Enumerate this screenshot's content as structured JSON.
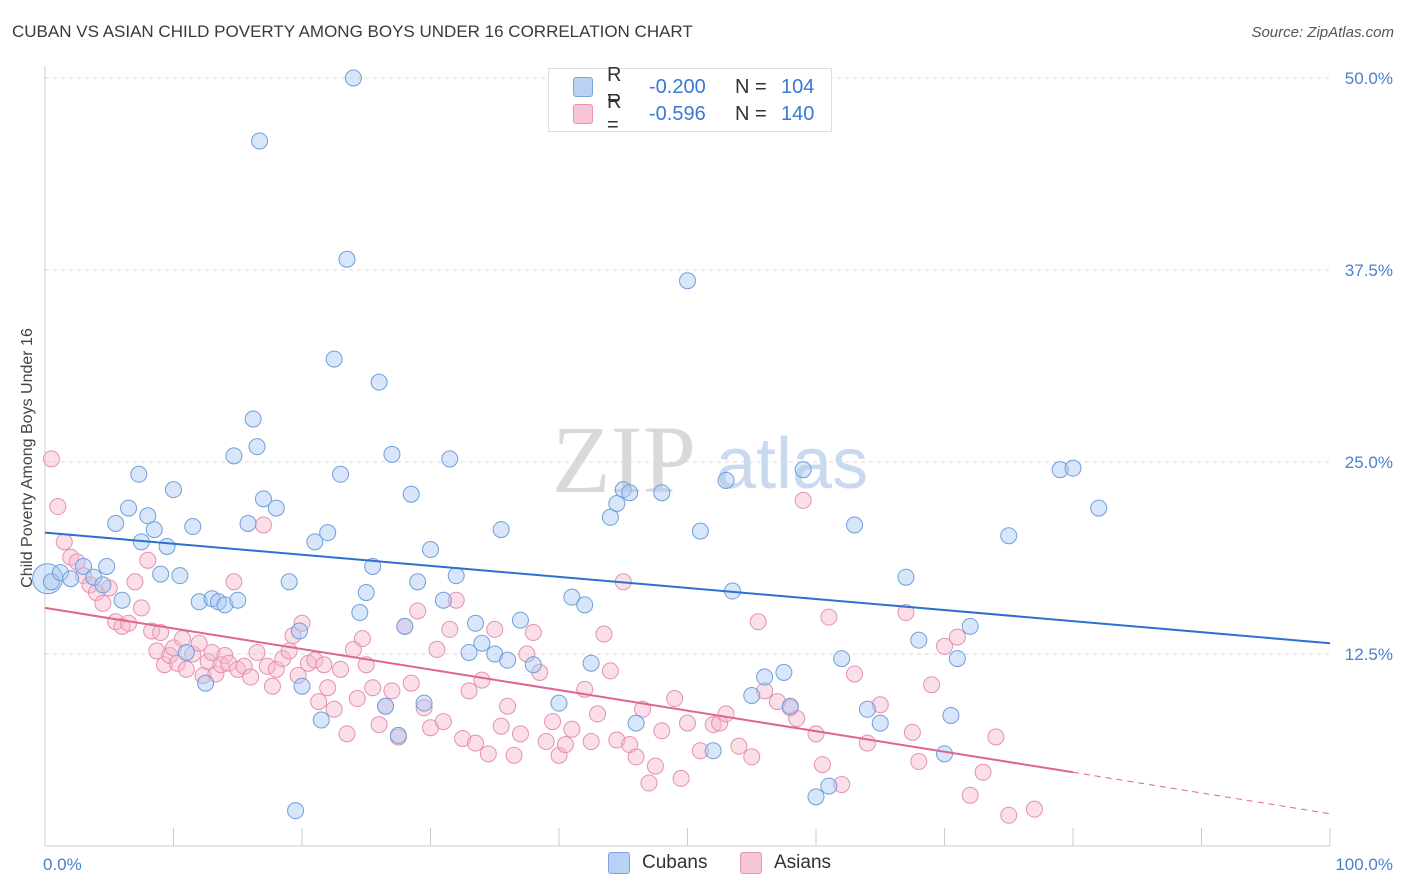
{
  "header": {
    "title": "CUBAN VS ASIAN CHILD POVERTY AMONG BOYS UNDER 16 CORRELATION CHART",
    "source": "Source: ZipAtlas.com"
  },
  "watermark": {
    "zip": "ZIP",
    "atlas": "atlas"
  },
  "legend": {
    "rows": [
      {
        "r_label": "R =",
        "r_value": "-0.200",
        "n_label": "N =",
        "n_value": "104"
      },
      {
        "r_label": "R =",
        "r_value": "-0.596",
        "n_label": "N =",
        "n_value": "140"
      }
    ]
  },
  "bottom_legend": {
    "cubans": "Cubans",
    "asians": "Asians"
  },
  "colors": {
    "cubans_fill": "#a9c8f2",
    "cubans_stroke": "#6f9fdb",
    "cubans_line": "#2d6fcf",
    "asians_fill": "#f6b7cc",
    "asians_stroke": "#e591ae",
    "asians_line": "#e0648f",
    "grid": "#d9d9d9",
    "axis": "#cccccc",
    "tick_text": "#4a7fd0"
  },
  "chart_data": {
    "type": "scatter",
    "title": "CUBAN VS ASIAN CHILD POVERTY AMONG BOYS UNDER 16 CORRELATION CHART",
    "xlabel": "",
    "ylabel": "Child Poverty Among Boys Under 16",
    "xlim": [
      0,
      100
    ],
    "ylim": [
      0,
      50
    ],
    "x_tick_labels": [
      "0.0%",
      "100.0%"
    ],
    "y_ticks": [
      12.5,
      25.0,
      37.5,
      50.0
    ],
    "y_tick_labels": [
      "12.5%",
      "25.0%",
      "37.5%",
      "50.0%"
    ],
    "grid": true,
    "legend_position": "top-center",
    "series": [
      {
        "name": "Cubans",
        "r": -0.2,
        "n": 104,
        "trend": {
          "x": [
            0,
            100
          ],
          "y": [
            20.4,
            13.2
          ],
          "dashed_from": 100
        },
        "points": [
          [
            0.5,
            17.2
          ],
          [
            1.2,
            17.8
          ],
          [
            2,
            17.4
          ],
          [
            3,
            18.2
          ],
          [
            3.8,
            17.5
          ],
          [
            4.5,
            17.0
          ],
          [
            4.8,
            18.2
          ],
          [
            5.5,
            21.0
          ],
          [
            6,
            16.0
          ],
          [
            6.5,
            22.0
          ],
          [
            7.3,
            24.2
          ],
          [
            7.5,
            19.8
          ],
          [
            8,
            21.5
          ],
          [
            8.5,
            20.6
          ],
          [
            9,
            17.7
          ],
          [
            9.5,
            19.5
          ],
          [
            10,
            23.2
          ],
          [
            10.5,
            17.6
          ],
          [
            11,
            12.6
          ],
          [
            11.5,
            20.8
          ],
          [
            12,
            15.9
          ],
          [
            12.5,
            10.6
          ],
          [
            13,
            16.1
          ],
          [
            13.5,
            15.9
          ],
          [
            14,
            15.7
          ],
          [
            14.7,
            25.4
          ],
          [
            15,
            16.0
          ],
          [
            15.8,
            21.0
          ],
          [
            16.2,
            27.8
          ],
          [
            16.5,
            26.0
          ],
          [
            16.7,
            45.9
          ],
          [
            17,
            22.6
          ],
          [
            18,
            22.0
          ],
          [
            19,
            17.2
          ],
          [
            19.5,
            2.3
          ],
          [
            19.8,
            14.0
          ],
          [
            20,
            10.4
          ],
          [
            21,
            19.8
          ],
          [
            21.5,
            8.2
          ],
          [
            22,
            20.4
          ],
          [
            22.5,
            31.7
          ],
          [
            23,
            24.2
          ],
          [
            23.5,
            38.2
          ],
          [
            24,
            50.0
          ],
          [
            24.5,
            15.2
          ],
          [
            25,
            16.5
          ],
          [
            25.5,
            18.2
          ],
          [
            26,
            30.2
          ],
          [
            26.5,
            9.1
          ],
          [
            27,
            25.5
          ],
          [
            27.5,
            7.2
          ],
          [
            28,
            14.3
          ],
          [
            28.5,
            22.9
          ],
          [
            29,
            17.2
          ],
          [
            29.5,
            9.3
          ],
          [
            30,
            19.3
          ],
          [
            31,
            16.0
          ],
          [
            31.5,
            25.2
          ],
          [
            32,
            17.6
          ],
          [
            33,
            12.6
          ],
          [
            33.5,
            14.5
          ],
          [
            34,
            13.2
          ],
          [
            35,
            12.5
          ],
          [
            35.5,
            20.6
          ],
          [
            36,
            12.1
          ],
          [
            37,
            14.7
          ],
          [
            38,
            11.8
          ],
          [
            40,
            9.3
          ],
          [
            41,
            16.2
          ],
          [
            42,
            15.7
          ],
          [
            42.5,
            11.9
          ],
          [
            44,
            21.4
          ],
          [
            44.5,
            22.3
          ],
          [
            45,
            23.2
          ],
          [
            45.5,
            23.0
          ],
          [
            46,
            8.0
          ],
          [
            48,
            23.0
          ],
          [
            50,
            36.8
          ],
          [
            51,
            20.5
          ],
          [
            52,
            6.2
          ],
          [
            53,
            23.8
          ],
          [
            53.5,
            16.6
          ],
          [
            55,
            9.8
          ],
          [
            56,
            11.0
          ],
          [
            57.5,
            11.3
          ],
          [
            58,
            9.1
          ],
          [
            59,
            24.5
          ],
          [
            60,
            3.2
          ],
          [
            61,
            3.9
          ],
          [
            62,
            12.2
          ],
          [
            63,
            20.9
          ],
          [
            64,
            8.9
          ],
          [
            65,
            8.0
          ],
          [
            67,
            17.5
          ],
          [
            68,
            13.4
          ],
          [
            70,
            6.0
          ],
          [
            70.5,
            8.5
          ],
          [
            71,
            12.2
          ],
          [
            72,
            14.3
          ],
          [
            75,
            20.2
          ],
          [
            79,
            24.5
          ],
          [
            80,
            24.6
          ],
          [
            82,
            22.0
          ]
        ]
      },
      {
        "name": "Asians",
        "r": -0.596,
        "n": 140,
        "trend": {
          "x": [
            0,
            80
          ],
          "y": [
            15.5,
            4.8
          ],
          "dashed_x": [
            80,
            100
          ],
          "dashed_y": [
            4.8,
            2.1
          ]
        },
        "points": [
          [
            0.5,
            25.2
          ],
          [
            1,
            22.1
          ],
          [
            1.5,
            19.8
          ],
          [
            2,
            18.8
          ],
          [
            2.5,
            18.5
          ],
          [
            3,
            17.6
          ],
          [
            3.5,
            17.0
          ],
          [
            4,
            16.5
          ],
          [
            4.5,
            15.8
          ],
          [
            5,
            16.8
          ],
          [
            5.5,
            14.6
          ],
          [
            6,
            14.3
          ],
          [
            6.5,
            14.5
          ],
          [
            7,
            17.2
          ],
          [
            7.5,
            15.5
          ],
          [
            8,
            18.6
          ],
          [
            8.3,
            14.0
          ],
          [
            8.7,
            12.7
          ],
          [
            9,
            13.9
          ],
          [
            9.3,
            11.8
          ],
          [
            9.7,
            12.4
          ],
          [
            10,
            12.9
          ],
          [
            10.3,
            11.9
          ],
          [
            10.7,
            13.5
          ],
          [
            11,
            11.5
          ],
          [
            11.5,
            12.5
          ],
          [
            12,
            13.2
          ],
          [
            12.3,
            11.1
          ],
          [
            12.7,
            12.0
          ],
          [
            13,
            12.6
          ],
          [
            13.3,
            11.2
          ],
          [
            13.7,
            11.8
          ],
          [
            14,
            12.4
          ],
          [
            14.3,
            11.9
          ],
          [
            14.7,
            17.2
          ],
          [
            15,
            11.5
          ],
          [
            15.5,
            11.7
          ],
          [
            16,
            11.0
          ],
          [
            16.5,
            12.6
          ],
          [
            17,
            20.9
          ],
          [
            17.3,
            11.7
          ],
          [
            17.7,
            10.4
          ],
          [
            18,
            11.5
          ],
          [
            18.5,
            12.2
          ],
          [
            19,
            12.7
          ],
          [
            19.3,
            13.7
          ],
          [
            19.7,
            11.1
          ],
          [
            20,
            14.5
          ],
          [
            20.5,
            11.9
          ],
          [
            21,
            12.1
          ],
          [
            21.3,
            9.4
          ],
          [
            21.7,
            11.8
          ],
          [
            22,
            10.3
          ],
          [
            22.5,
            8.9
          ],
          [
            23,
            11.5
          ],
          [
            23.5,
            7.3
          ],
          [
            24,
            12.8
          ],
          [
            24.3,
            9.6
          ],
          [
            24.7,
            13.5
          ],
          [
            25,
            11.8
          ],
          [
            25.5,
            10.3
          ],
          [
            26,
            7.9
          ],
          [
            26.5,
            9.1
          ],
          [
            27,
            10.1
          ],
          [
            27.5,
            7.1
          ],
          [
            28,
            14.3
          ],
          [
            28.5,
            10.6
          ],
          [
            29,
            15.3
          ],
          [
            29.5,
            9.0
          ],
          [
            30,
            7.7
          ],
          [
            30.5,
            12.8
          ],
          [
            31,
            8.1
          ],
          [
            31.5,
            14.1
          ],
          [
            32,
            16.0
          ],
          [
            32.5,
            7.0
          ],
          [
            33,
            10.1
          ],
          [
            33.5,
            6.7
          ],
          [
            34,
            10.8
          ],
          [
            34.5,
            6.0
          ],
          [
            35,
            14.1
          ],
          [
            35.5,
            7.8
          ],
          [
            36,
            9.1
          ],
          [
            36.5,
            5.9
          ],
          [
            37,
            7.3
          ],
          [
            37.5,
            12.5
          ],
          [
            38,
            13.9
          ],
          [
            38.5,
            11.3
          ],
          [
            39,
            6.8
          ],
          [
            39.5,
            8.1
          ],
          [
            40,
            5.9
          ],
          [
            40.5,
            6.6
          ],
          [
            41,
            7.6
          ],
          [
            42,
            10.2
          ],
          [
            42.5,
            6.8
          ],
          [
            43,
            8.6
          ],
          [
            43.5,
            13.8
          ],
          [
            44,
            11.4
          ],
          [
            44.5,
            6.9
          ],
          [
            45,
            17.2
          ],
          [
            45.5,
            6.6
          ],
          [
            46,
            5.8
          ],
          [
            46.5,
            8.9
          ],
          [
            47,
            4.1
          ],
          [
            47.5,
            5.2
          ],
          [
            48,
            7.5
          ],
          [
            49,
            9.6
          ],
          [
            49.5,
            4.4
          ],
          [
            50,
            8.0
          ],
          [
            51,
            6.2
          ],
          [
            52,
            7.9
          ],
          [
            52.5,
            8.0
          ],
          [
            53,
            8.6
          ],
          [
            54,
            6.5
          ],
          [
            55,
            5.8
          ],
          [
            55.5,
            14.6
          ],
          [
            56,
            10.1
          ],
          [
            57,
            9.4
          ],
          [
            58,
            9.0
          ],
          [
            58.5,
            8.3
          ],
          [
            59,
            22.5
          ],
          [
            60,
            7.3
          ],
          [
            60.5,
            5.3
          ],
          [
            61,
            14.9
          ],
          [
            62,
            4.0
          ],
          [
            63,
            11.2
          ],
          [
            64,
            6.7
          ],
          [
            65,
            9.2
          ],
          [
            67,
            15.2
          ],
          [
            67.5,
            7.4
          ],
          [
            68,
            5.5
          ],
          [
            69,
            10.5
          ],
          [
            70,
            13.0
          ],
          [
            71,
            13.6
          ],
          [
            72,
            3.3
          ],
          [
            73,
            4.8
          ],
          [
            74,
            7.1
          ],
          [
            75,
            2.0
          ],
          [
            77,
            2.4
          ]
        ]
      }
    ]
  }
}
